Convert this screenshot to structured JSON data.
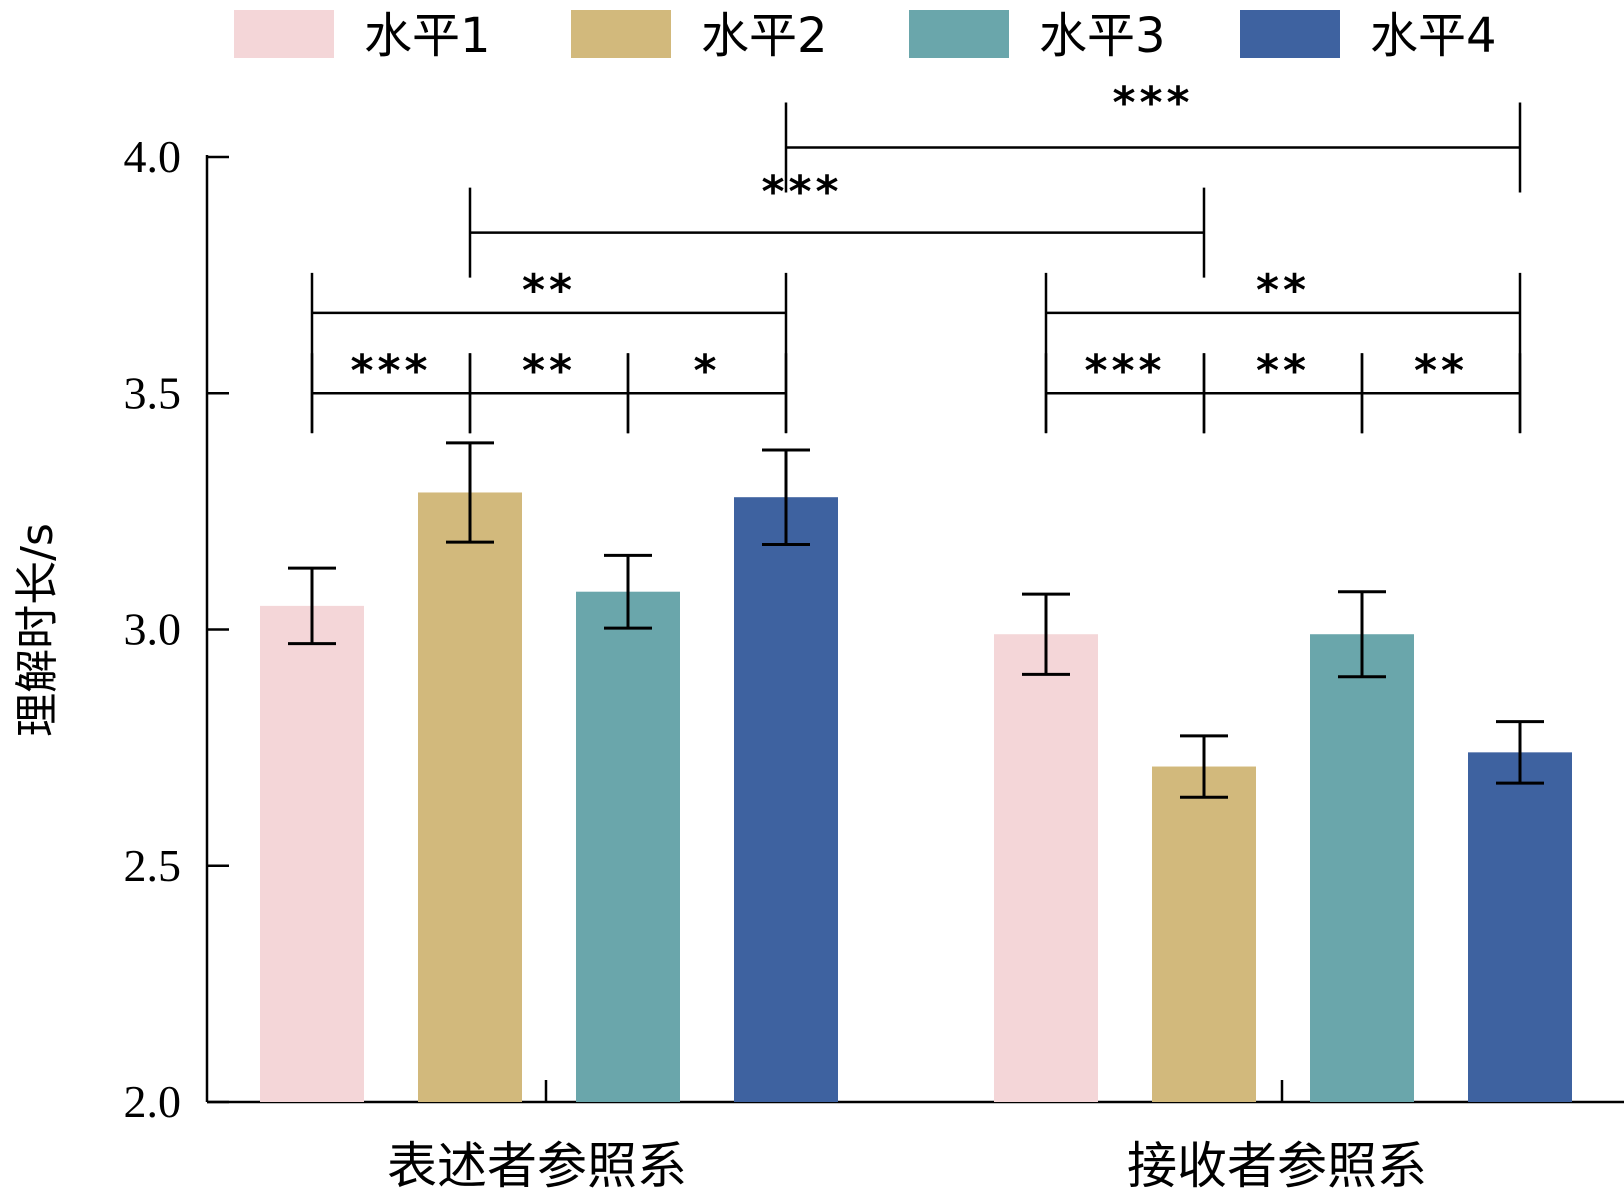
{
  "chart_data": {
    "type": "bar",
    "title": "",
    "xlabel": "",
    "ylabel": "理解时长/s",
    "ylim": [
      2.0,
      4.0
    ],
    "yticks": [
      "2.0",
      "2.5",
      "3.0",
      "3.5",
      "4.0"
    ],
    "categories": [
      "表述者参照系",
      "接收者参照系"
    ],
    "series": [
      {
        "name": "水平1",
        "color": "#F4D6D8",
        "values": [
          3.05,
          2.99
        ],
        "errors": [
          0.08,
          0.085
        ]
      },
      {
        "name": "水平2",
        "color": "#D2B97C",
        "values": [
          3.29,
          2.71
        ],
        "errors": [
          0.105,
          0.065
        ]
      },
      {
        "name": "水平3",
        "color": "#6AA6AB",
        "values": [
          3.08,
          2.99
        ],
        "errors": [
          0.077,
          0.09
        ]
      },
      {
        "name": "水平4",
        "color": "#3E62A0",
        "values": [
          3.28,
          2.74
        ],
        "errors": [
          0.1,
          0.065
        ]
      }
    ],
    "legend_position": "top",
    "significance": [
      {
        "group": 0,
        "from": 0,
        "to": 1,
        "level": 3.5,
        "label": "***"
      },
      {
        "group": 0,
        "from": 1,
        "to": 2,
        "level": 3.5,
        "label": "**"
      },
      {
        "group": 0,
        "from": 2,
        "to": 3,
        "level": 3.5,
        "label": "*"
      },
      {
        "group": 0,
        "from": 0,
        "to": 3,
        "level": 3.67,
        "label": "**"
      },
      {
        "group": 1,
        "from": 0,
        "to": 1,
        "level": 3.5,
        "label": "***"
      },
      {
        "group": 1,
        "from": 1,
        "to": 2,
        "level": 3.5,
        "label": "**"
      },
      {
        "group": 1,
        "from": 2,
        "to": 3,
        "level": 3.5,
        "label": "**"
      },
      {
        "group": 1,
        "from": 0,
        "to": 3,
        "level": 3.67,
        "label": "**"
      },
      {
        "cross": true,
        "fromGroup": 0,
        "fromSeries": 1,
        "toGroup": 1,
        "toSeries": 1,
        "level": 3.84,
        "label": "***"
      },
      {
        "cross": true,
        "fromGroup": 0,
        "fromSeries": 3,
        "toGroup": 1,
        "toSeries": 3,
        "level": 4.02,
        "label": "***"
      }
    ]
  }
}
